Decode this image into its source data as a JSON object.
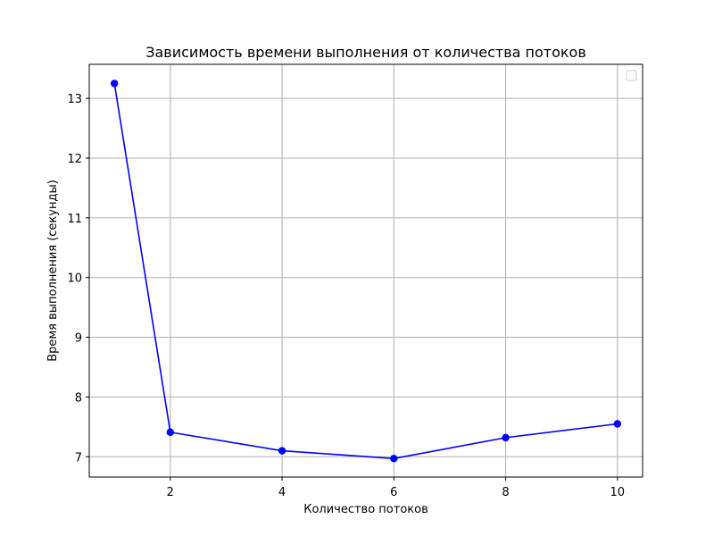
{
  "chart_data": {
    "type": "line",
    "title": "Зависимость времени выполнения от количества потоков",
    "xlabel": "Количество потоков",
    "ylabel": "Время выполнения (секунды)",
    "x": [
      1,
      2,
      4,
      6,
      8,
      10
    ],
    "series": [
      {
        "values": [
          13.25,
          7.41,
          7.1,
          6.97,
          7.32,
          7.55
        ],
        "color": "#0000ff",
        "marker": "circle"
      }
    ],
    "xlim": [
      0.55,
      10.45
    ],
    "ylim": [
      6.66,
      13.57
    ],
    "xticks": [
      2,
      4,
      6,
      8,
      10
    ],
    "yticks": [
      7,
      8,
      9,
      10,
      11,
      12,
      13
    ],
    "grid": true,
    "legend": {
      "position": "top-right",
      "entries": []
    }
  }
}
